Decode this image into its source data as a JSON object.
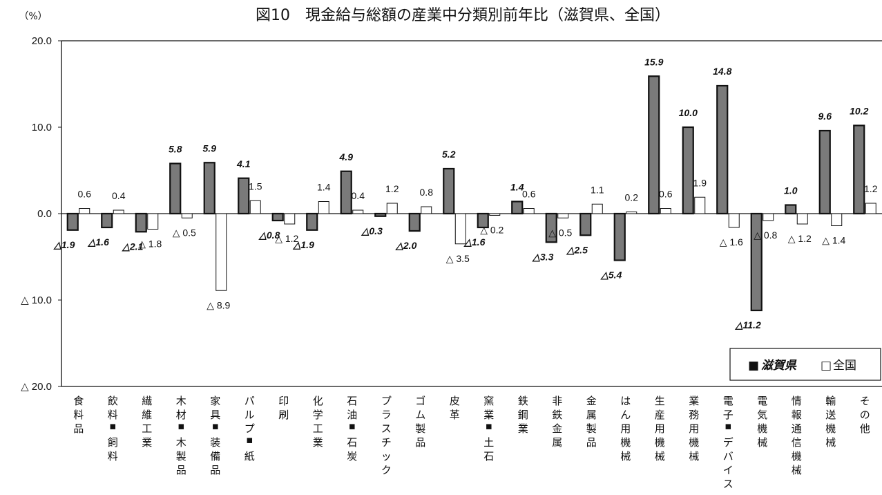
{
  "chart_data": {
    "type": "bar",
    "title": "図10　現金給与総額の産業中分類別前年比（滋賀県、全国）",
    "unit_label": "（%）",
    "y_ticks": [
      "20.0",
      "10.0",
      "0.0",
      "△ 10.0",
      "△ 20.0"
    ],
    "y_tick_values": [
      20,
      10,
      0,
      -10,
      -20
    ],
    "ylim": [
      -20,
      20
    ],
    "legend_position": "bottom-right",
    "categories": [
      "食料品",
      "飲料・飼料",
      "繊維工業",
      "木材・木製品",
      "家具・装備品",
      "パルプ・紙",
      "印刷",
      "化学工業",
      "石油・石炭",
      "プラスチック",
      "ゴム製品",
      "皮革",
      "窯業・土石",
      "鉄鋼業",
      "非鉄金属",
      "金属製品",
      "はん用機械",
      "生産用機械",
      "業務用機械",
      "電子・デバイス",
      "電気機械",
      "情報通信機械",
      "輸送機械",
      "その他"
    ],
    "series": [
      {
        "name": "滋賀県",
        "color": "#7a7a7a",
        "values": [
          -1.9,
          -1.6,
          -2.1,
          5.8,
          5.9,
          4.1,
          -0.8,
          -1.9,
          4.9,
          -0.3,
          -2.0,
          5.2,
          -1.6,
          1.4,
          -3.3,
          -2.5,
          -5.4,
          15.9,
          10.0,
          14.8,
          -11.2,
          1.0,
          9.6,
          10.2
        ],
        "labels": [
          "△1.9",
          "△1.6",
          "△2.1",
          "5.8",
          "5.9",
          "4.1",
          "△0.8",
          "△1.9",
          "4.9",
          "△0.3",
          "△2.0",
          "5.2",
          "△1.6",
          "1.4",
          "△3.3",
          "△2.5",
          "△5.4",
          "15.9",
          "10.0",
          "14.8",
          "△11.2",
          "1.0",
          "9.6",
          "10.2"
        ]
      },
      {
        "name": "全国",
        "color": "#ffffff",
        "values": [
          0.6,
          0.4,
          -1.8,
          -0.5,
          -8.9,
          1.5,
          -1.2,
          1.4,
          0.4,
          1.2,
          0.8,
          -3.5,
          -0.2,
          0.6,
          -0.5,
          1.1,
          0.2,
          0.6,
          1.9,
          -1.6,
          -0.8,
          -1.2,
          -1.4,
          1.2
        ],
        "labels": [
          "0.6",
          "0.4",
          "△ 1.8",
          "△ 0.5",
          "△ 8.9",
          "1.5",
          "△ 1.2",
          "1.4",
          "0.4",
          "1.2",
          "0.8",
          "△ 3.5",
          "△ 0.2",
          "0.6",
          "△ 0.5",
          "1.1",
          "0.2",
          "0.6",
          "1.9",
          "△ 1.6",
          "△ 0.8",
          "△ 1.2",
          "△ 1.4",
          "1.2"
        ]
      }
    ],
    "legend": {
      "shiga_marker": "■",
      "shiga_label": "滋賀県",
      "zenkoku_marker": "□",
      "zenkoku_label": "全国"
    }
  }
}
